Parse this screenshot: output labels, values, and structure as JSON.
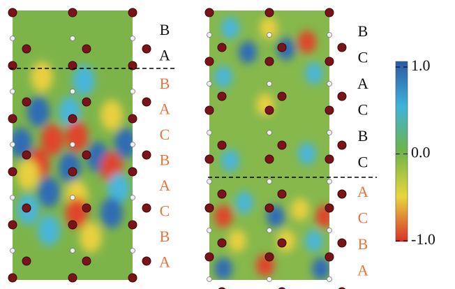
{
  "left_panel": {
    "stacking_above": [
      "B",
      "A"
    ],
    "stacking_below": [
      "B",
      "A",
      "C",
      "B",
      "A",
      "C",
      "B",
      "A"
    ]
  },
  "right_panel": {
    "stacking_above": [
      "B",
      "C",
      "A",
      "C",
      "B",
      "C"
    ],
    "stacking_below": [
      "A",
      "C",
      "B",
      "A"
    ]
  },
  "colorbar": {
    "lim": [
      -1,
      1
    ],
    "ticks": [
      {
        "value": 1,
        "label": "1.0"
      },
      {
        "value": 0,
        "label": "0.0"
      },
      {
        "value": -1,
        "label": "-1.0"
      }
    ]
  }
}
